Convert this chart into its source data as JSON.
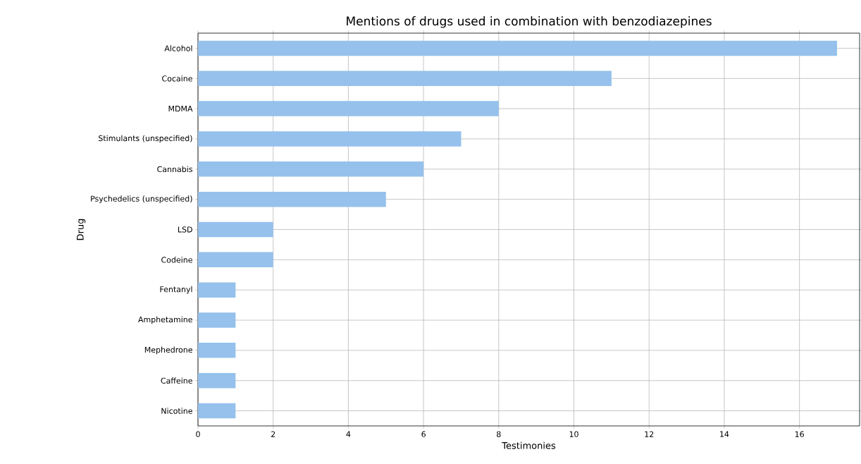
{
  "chart_data": {
    "type": "bar",
    "orientation": "horizontal",
    "title": "Mentions of drugs used in combination with benzodiazepines",
    "xlabel": "Testimonies",
    "ylabel": "Drug",
    "categories": [
      "Alcohol",
      "Cocaine",
      "MDMA",
      "Stimulants (unspecified)",
      "Cannabis",
      "Psychedelics (unspecified)",
      "LSD",
      "Codeine",
      "Fentanyl",
      "Amphetamine",
      "Mephedrone",
      "Caffeine",
      "Nicotine"
    ],
    "values": [
      17,
      11,
      8,
      7,
      6,
      5,
      2,
      2,
      1,
      1,
      1,
      1,
      1
    ],
    "color": "#95c1ec",
    "xlim": [
      0,
      17.6
    ],
    "xticks": [
      0,
      2,
      4,
      6,
      8,
      10,
      12,
      14,
      16
    ],
    "grid": true
  }
}
